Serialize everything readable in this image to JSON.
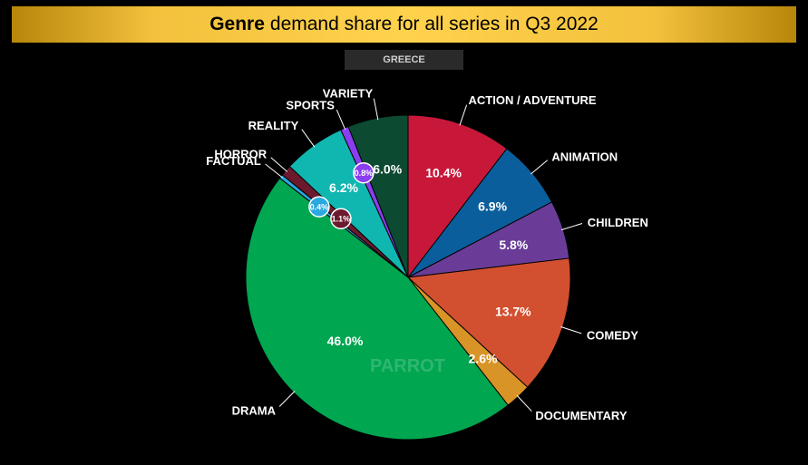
{
  "header": {
    "title_bold": "Genre",
    "title_rest": "demand share for all series in Q3 2022"
  },
  "subtitle": "GREECE",
  "watermark": "PARROT",
  "chart_data": {
    "type": "pie",
    "title": "Genre demand share for all series in Q3 2022",
    "subtitle": "GREECE",
    "slices": [
      {
        "label": "ACTION / ADVENTURE",
        "value": 10.4,
        "value_label": "10.4%",
        "color": "#c8183a"
      },
      {
        "label": "ANIMATION",
        "value": 6.9,
        "value_label": "6.9%",
        "color": "#0b5e9c"
      },
      {
        "label": "CHILDREN",
        "value": 5.8,
        "value_label": "5.8%",
        "color": "#6a3c98"
      },
      {
        "label": "COMEDY",
        "value": 13.7,
        "value_label": "13.7%",
        "color": "#d2502f"
      },
      {
        "label": "DOCUMENTARY",
        "value": 2.6,
        "value_label": "2.6%",
        "color": "#d89426"
      },
      {
        "label": "DRAMA",
        "value": 46.0,
        "value_label": "46.0%",
        "color": "#00a650"
      },
      {
        "label": "FACTUAL",
        "value": 0.4,
        "value_label": "0.4%",
        "color": "#2aa9e0"
      },
      {
        "label": "HORROR",
        "value": 1.1,
        "value_label": "1.1%",
        "color": "#6b1a2e"
      },
      {
        "label": "REALITY",
        "value": 6.2,
        "value_label": "6.2%",
        "color": "#10b7b0"
      },
      {
        "label": "SPORTS",
        "value": 0.8,
        "value_label": "0.8%",
        "color": "#8a3ef0"
      },
      {
        "label": "VARIETY",
        "value": 6.0,
        "value_label": "6.0%",
        "color": "#0d4a32"
      }
    ]
  }
}
